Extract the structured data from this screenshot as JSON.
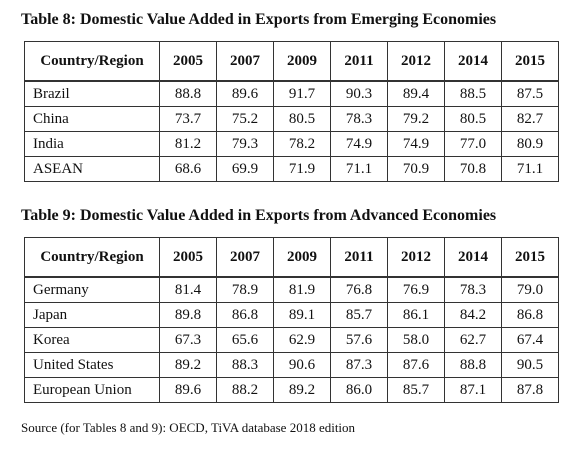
{
  "table8": {
    "title": "Table 8: Domestic Value Added in Exports from Emerging Economies",
    "header": [
      "Country/Region",
      "2005",
      "2007",
      "2009",
      "2011",
      "2012",
      "2014",
      "2015"
    ],
    "rows": [
      [
        "Brazil",
        "88.8",
        "89.6",
        "91.7",
        "90.3",
        "89.4",
        "88.5",
        "87.5"
      ],
      [
        "China",
        "73.7",
        "75.2",
        "80.5",
        "78.3",
        "79.2",
        "80.5",
        "82.7"
      ],
      [
        "India",
        "81.2",
        "79.3",
        "78.2",
        "74.9",
        "74.9",
        "77.0",
        "80.9"
      ],
      [
        "ASEAN",
        "68.6",
        "69.9",
        "71.9",
        "71.1",
        "70.9",
        "70.8",
        "71.1"
      ]
    ]
  },
  "table9": {
    "title": "Table 9: Domestic Value Added in Exports from Advanced Economies",
    "header": [
      "Country/Region",
      "2005",
      "2007",
      "2009",
      "2011",
      "2012",
      "2014",
      "2015"
    ],
    "rows": [
      [
        "Germany",
        "81.4",
        "78.9",
        "81.9",
        "76.8",
        "76.9",
        "78.3",
        "79.0"
      ],
      [
        "Japan",
        "89.8",
        "86.8",
        "89.1",
        "85.7",
        "86.1",
        "84.2",
        "86.8"
      ],
      [
        "Korea",
        "67.3",
        "65.6",
        "62.9",
        "57.6",
        "58.0",
        "62.7",
        "67.4"
      ],
      [
        "United States",
        "89.2",
        "88.3",
        "90.6",
        "87.3",
        "87.6",
        "88.8",
        "90.5"
      ],
      [
        "European Union",
        "89.6",
        "88.2",
        "89.2",
        "86.0",
        "85.7",
        "87.1",
        "87.8"
      ]
    ]
  },
  "source": "Source (for Tables 8 and 9): OECD, TiVA database 2018 edition"
}
